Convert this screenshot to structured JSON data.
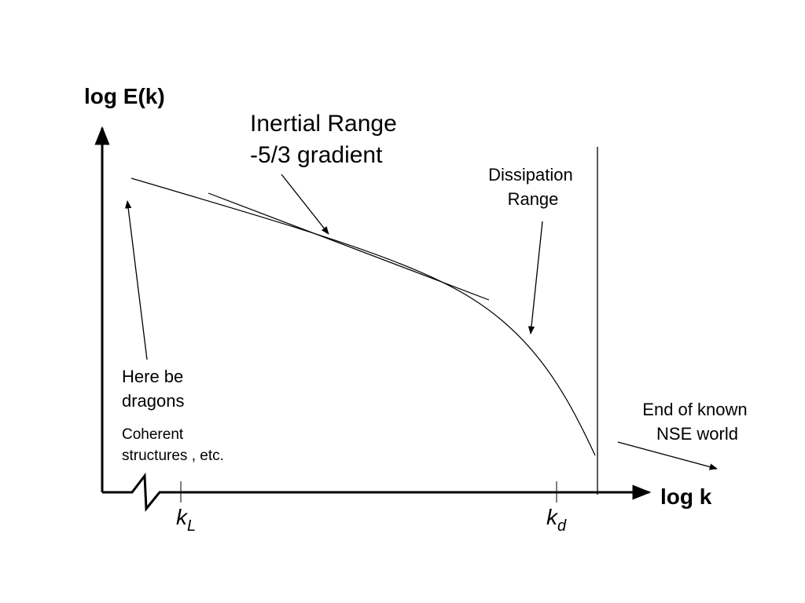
{
  "axes": {
    "y_label": "log E(k)",
    "x_label": "log k"
  },
  "ticks": [
    {
      "symbol": "k",
      "subscript": "L"
    },
    {
      "symbol": "k",
      "subscript": "d"
    }
  ],
  "annotations": {
    "inertial": [
      "Inertial Range",
      "-5/3 gradient"
    ],
    "dissipation": [
      "Dissipation",
      "Range"
    ],
    "dragons": [
      "Here be",
      "dragons"
    ],
    "coherent": [
      "Coherent",
      "structures , etc."
    ],
    "end": [
      "End of known",
      "NSE world"
    ]
  }
}
